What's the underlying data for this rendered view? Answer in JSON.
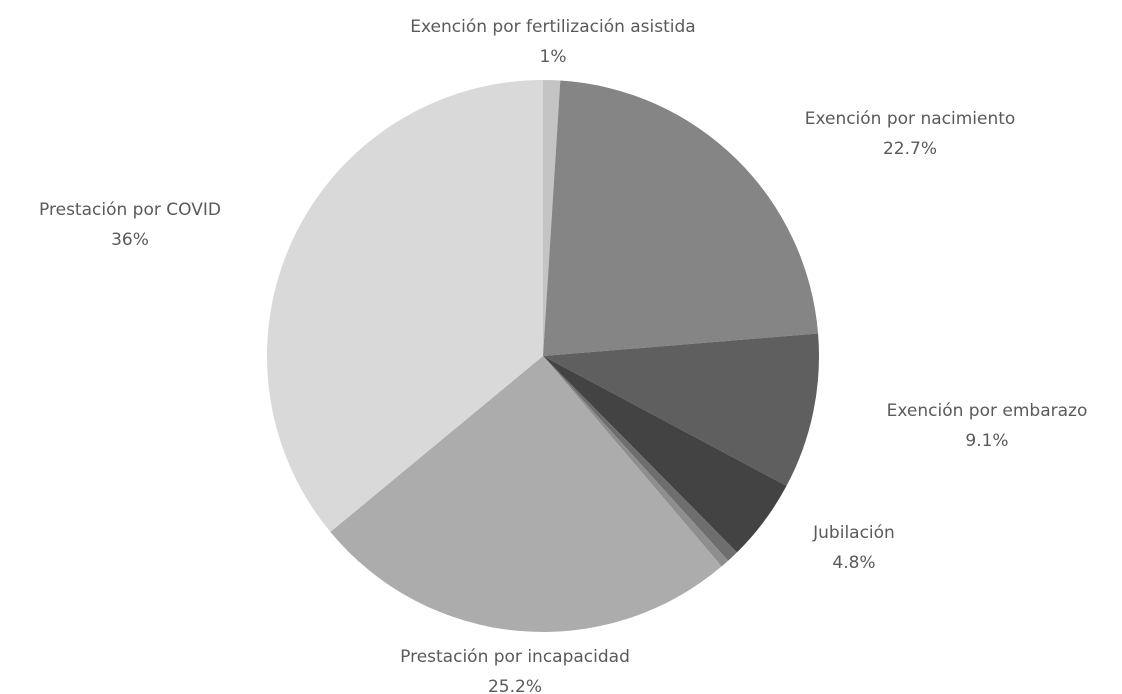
{
  "chart_data": {
    "type": "pie",
    "categories": [
      "Exención por fertilización asistida",
      "Exención por nacimiento",
      "Exención por embarazo",
      "Jubilación",
      null,
      null,
      "Prestación por incapacidad",
      "Prestación por COVID"
    ],
    "values": [
      1,
      22.7,
      9.1,
      4.8,
      0.7,
      0.5,
      25.2,
      36
    ],
    "value_labels": [
      "1%",
      "22.7%",
      "9.1%",
      "4.8%",
      null,
      null,
      "25.2%",
      "36%"
    ],
    "colors": [
      "#c4c4c4",
      "#858585",
      "#5f5f5f",
      "#434343",
      "#6e6e6e",
      "#8e8e8e",
      "#acacac",
      "#d9d9d9"
    ]
  }
}
